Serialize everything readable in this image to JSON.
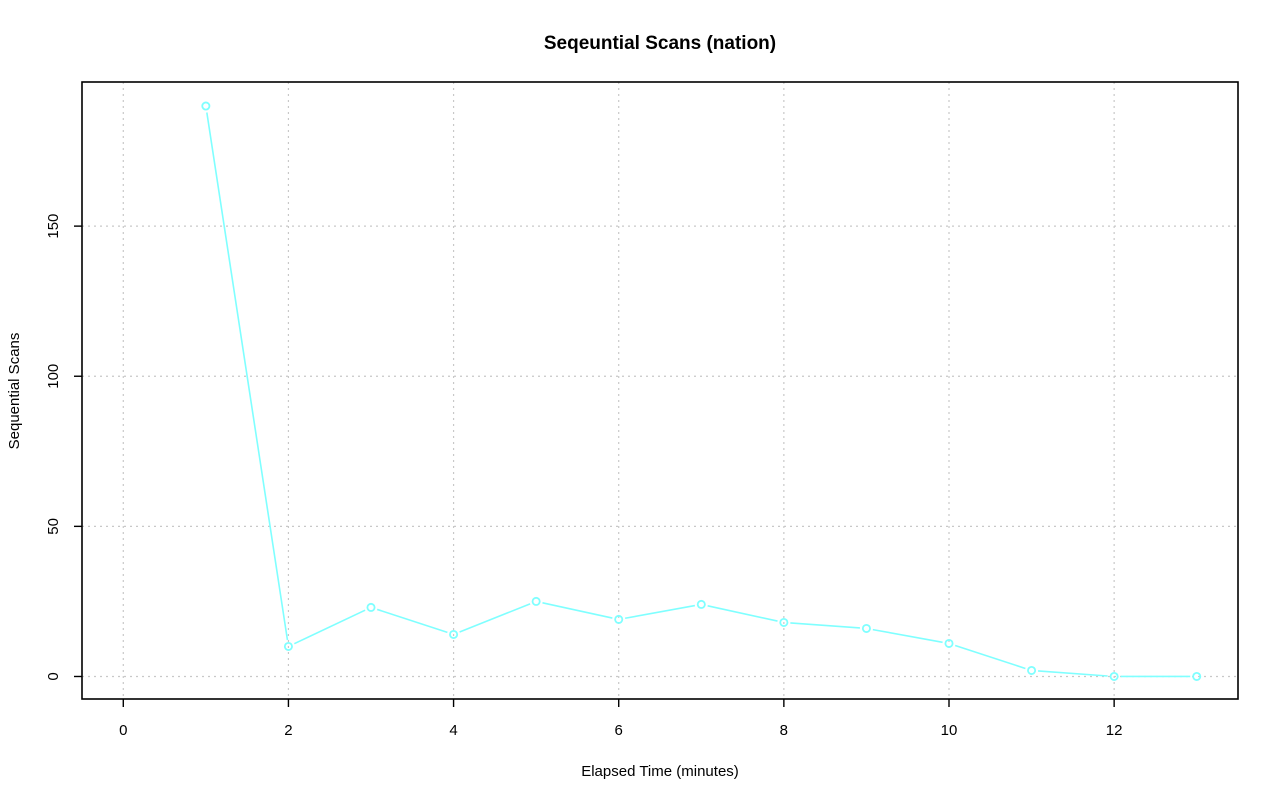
{
  "chart_data": {
    "type": "line",
    "title": "Seqeuntial Scans (nation)",
    "xlabel": "Elapsed Time (minutes)",
    "ylabel": "Sequential Scans",
    "xlim": [
      -0.5,
      13.5
    ],
    "ylim": [
      -7.5,
      198
    ],
    "x_ticks": [
      0,
      2,
      4,
      6,
      8,
      10,
      12
    ],
    "y_ticks": [
      0,
      50,
      100,
      150
    ],
    "grid": true,
    "series": [
      {
        "color": "#7fffff",
        "x": [
          1,
          2,
          3,
          4,
          5,
          6,
          7,
          8,
          9,
          10,
          11,
          12,
          13
        ],
        "y": [
          190,
          10,
          23,
          14,
          25,
          19,
          24,
          18,
          16,
          11,
          2,
          0,
          0
        ]
      }
    ]
  }
}
